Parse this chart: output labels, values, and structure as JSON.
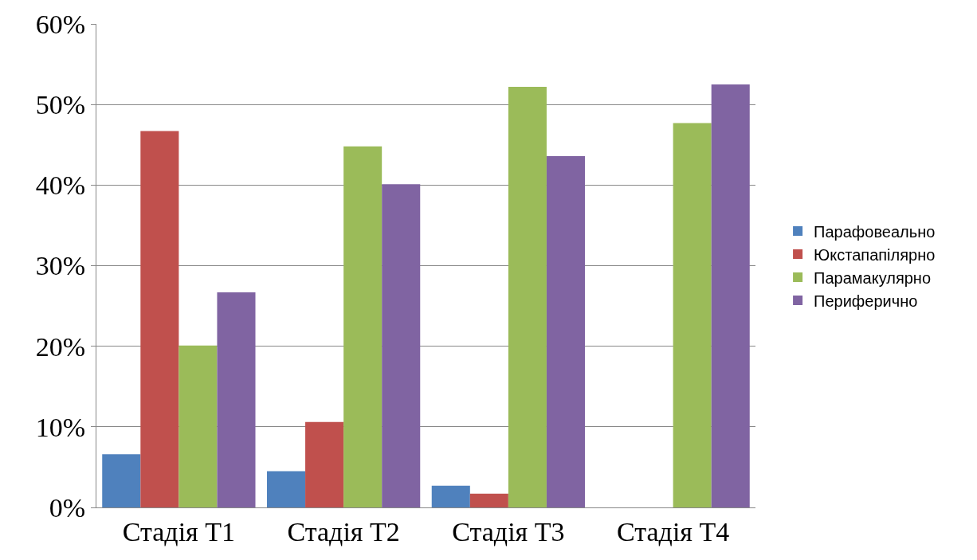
{
  "chart_data": {
    "type": "bar",
    "categories": [
      "Стадія Т1",
      "Стадія Т2",
      "Стадія Т3",
      "Стадія Т4"
    ],
    "series": [
      {
        "name": "Парафовеально",
        "color": "#4f81bd",
        "values": [
          6.6,
          4.5,
          2.7,
          0
        ]
      },
      {
        "name": "Юкстапапілярно",
        "color": "#c0504d",
        "values": [
          46.7,
          10.6,
          1.7,
          0
        ]
      },
      {
        "name": "Парамакулярно",
        "color": "#9bbb59",
        "values": [
          20.1,
          44.8,
          52.2,
          47.7
        ]
      },
      {
        "name": "Периферично",
        "color": "#8064a2",
        "values": [
          26.7,
          40.1,
          43.6,
          52.5
        ]
      }
    ],
    "ylim": [
      0,
      60
    ],
    "yticks": [
      {
        "value": 0,
        "label": "0%"
      },
      {
        "value": 10,
        "label": "10%"
      },
      {
        "value": 20,
        "label": "20%"
      },
      {
        "value": 30,
        "label": "30%"
      },
      {
        "value": 40,
        "label": "40%"
      },
      {
        "value": 50,
        "label": "50%"
      },
      {
        "value": 60,
        "label": "60%"
      }
    ],
    "grid": "y",
    "legend": "right"
  }
}
